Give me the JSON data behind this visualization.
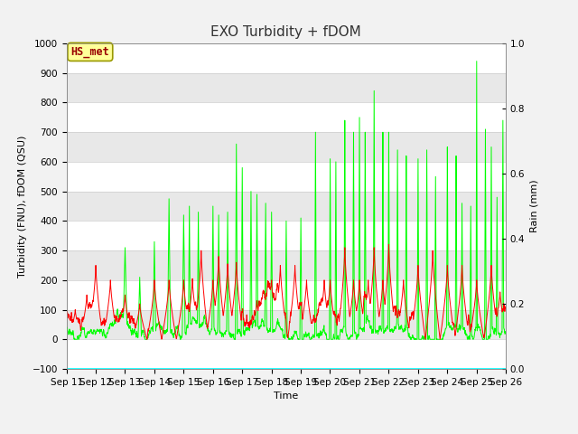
{
  "title": "EXO Turbidity + fDOM",
  "xlabel": "Time",
  "ylabel_left": "Turbidity (FNU), fDOM (QSU)",
  "ylabel_right": "Rain (mm)",
  "ylim_left": [
    -100,
    1000
  ],
  "ylim_right": [
    0.0,
    1.0
  ],
  "yticks_left": [
    -100,
    0,
    100,
    200,
    300,
    400,
    500,
    600,
    700,
    800,
    900,
    1000
  ],
  "yticks_right": [
    0.0,
    0.2,
    0.4,
    0.6,
    0.8,
    1.0
  ],
  "x_tick_labels": [
    "Sep 11",
    "Sep 12",
    "Sep 13",
    "Sep 14",
    "Sep 15",
    "Sep 16",
    "Sep 17",
    "Sep 18",
    "Sep 19",
    "Sep 20",
    "Sep 21",
    "Sep 22",
    "Sep 23",
    "Sep 24",
    "Sep 25",
    "Sep 26"
  ],
  "annotation_text": "HS_met",
  "annotation_color": "#990000",
  "annotation_bg": "#FFFF99",
  "annotation_edge": "#999900",
  "fdom_color": "#FF0000",
  "turbidity_color": "#00FF00",
  "rain_color": "#00FFFF",
  "band_colors": [
    "#FFFFFF",
    "#E8E8E8"
  ],
  "title_fontsize": 11,
  "label_fontsize": 8,
  "tick_fontsize": 7.5,
  "legend_fontsize": 9
}
